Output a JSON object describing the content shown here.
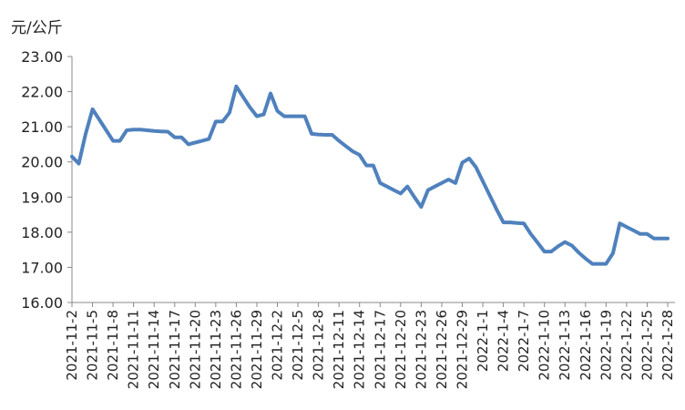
{
  "chart_data": {
    "type": "line",
    "ylabel": "元/公斤",
    "ylim": [
      16,
      23
    ],
    "yticks": [
      16,
      17,
      18,
      19,
      20,
      21,
      22,
      23
    ],
    "ytick_decimals": 2,
    "x_tick_labels": [
      "2021-11-2",
      "2021-11-5",
      "2021-11-8",
      "2021-11-11",
      "2021-11-14",
      "2021-11-17",
      "2021-11-20",
      "2021-11-23",
      "2021-11-26",
      "2021-11-29",
      "2021-12-2",
      "2021-12-5",
      "2021-12-8",
      "2021-12-11",
      "2021-12-14",
      "2021-12-17",
      "2021-12-20",
      "2021-12-23",
      "2021-12-26",
      "2021-12-29",
      "2022-1-1",
      "2022-1-4",
      "2022-1-7",
      "2022-1-10",
      "2022-1-13",
      "2022-1-16",
      "2022-1-19",
      "2022-1-22",
      "2022-1-25",
      "2022-1-28"
    ],
    "grid": false,
    "series": [
      {
        "color": "#4F81BD",
        "x": [
          "2021-11-2",
          "2021-11-3",
          "2021-11-4",
          "2021-11-5",
          "2021-11-6",
          "2021-11-7",
          "2021-11-8",
          "2021-11-9",
          "2021-11-10",
          "2021-11-11",
          "2021-11-12",
          "2021-11-13",
          "2021-11-14",
          "2021-11-15",
          "2021-11-16",
          "2021-11-17",
          "2021-11-18",
          "2021-11-19",
          "2021-11-20",
          "2021-11-21",
          "2021-11-22",
          "2021-11-23",
          "2021-11-24",
          "2021-11-25",
          "2021-11-26",
          "2021-11-27",
          "2021-11-28",
          "2021-11-29",
          "2021-11-30",
          "2021-12-1",
          "2021-12-2",
          "2021-12-3",
          "2021-12-4",
          "2021-12-5",
          "2021-12-6",
          "2021-12-7",
          "2021-12-8",
          "2021-12-9",
          "2021-12-10",
          "2021-12-11",
          "2021-12-12",
          "2021-12-13",
          "2021-12-14",
          "2021-12-15",
          "2021-12-16",
          "2021-12-17",
          "2021-12-18",
          "2021-12-19",
          "2021-12-20",
          "2021-12-21",
          "2021-12-22",
          "2021-12-23",
          "2021-12-24",
          "2021-12-25",
          "2021-12-26",
          "2021-12-27",
          "2021-12-28",
          "2021-12-29",
          "2021-12-30",
          "2021-12-31",
          "2022-1-1",
          "2022-1-2",
          "2022-1-3",
          "2022-1-4",
          "2022-1-5",
          "2022-1-6",
          "2022-1-7",
          "2022-1-8",
          "2022-1-9",
          "2022-1-10",
          "2022-1-11",
          "2022-1-12",
          "2022-1-13",
          "2022-1-14",
          "2022-1-15",
          "2022-1-16",
          "2022-1-17",
          "2022-1-18",
          "2022-1-19",
          "2022-1-20",
          "2022-1-21",
          "2022-1-22",
          "2022-1-23",
          "2022-1-24",
          "2022-1-25",
          "2022-1-26",
          "2022-1-27",
          "2022-1-28"
        ],
        "values": [
          20.15,
          19.95,
          20.8,
          21.5,
          21.2,
          20.9,
          20.6,
          20.6,
          20.9,
          20.92,
          20.92,
          20.9,
          20.88,
          20.87,
          20.86,
          20.7,
          20.7,
          20.5,
          20.55,
          20.6,
          20.65,
          21.15,
          21.15,
          21.4,
          22.15,
          21.85,
          21.55,
          21.3,
          21.35,
          21.95,
          21.45,
          21.3,
          21.3,
          21.3,
          21.3,
          20.8,
          20.78,
          20.77,
          20.77,
          20.6,
          20.45,
          20.3,
          20.2,
          19.9,
          19.9,
          19.4,
          19.3,
          19.2,
          19.1,
          19.3,
          19.0,
          18.72,
          19.2,
          19.3,
          19.4,
          19.5,
          19.4,
          19.98,
          20.1,
          19.85,
          19.45,
          19.05,
          18.65,
          18.28,
          18.28,
          18.26,
          18.25,
          17.95,
          17.7,
          17.45,
          17.45,
          17.6,
          17.72,
          17.62,
          17.42,
          17.25,
          17.1,
          17.1,
          17.1,
          17.4,
          18.25,
          18.15,
          18.05,
          17.95,
          17.95,
          17.82,
          17.82,
          17.82
        ]
      }
    ]
  }
}
